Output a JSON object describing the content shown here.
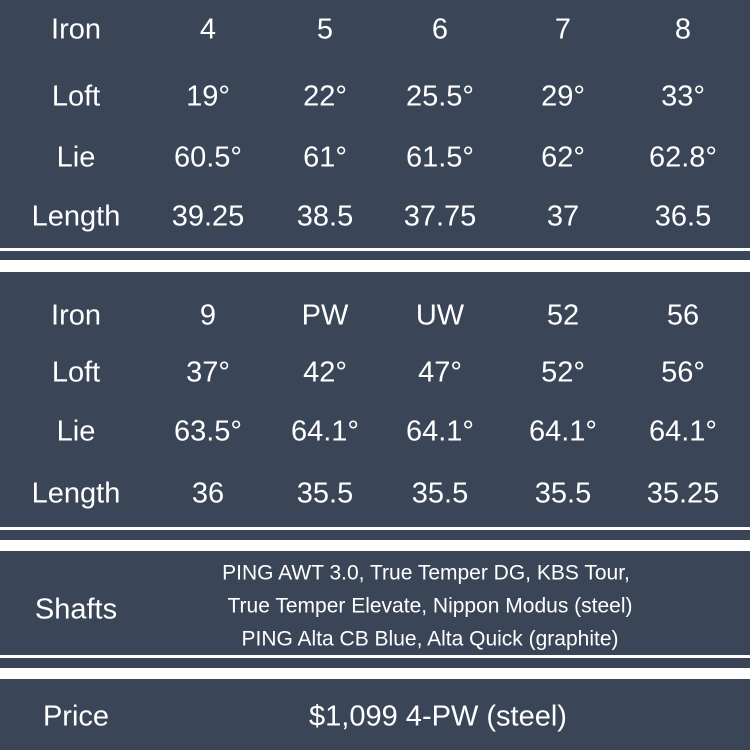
{
  "colors": {
    "background": "#3a4657",
    "divider": "#ffffff",
    "text": "#ffffff"
  },
  "table1": {
    "rows": [
      {
        "label": "Iron",
        "values": [
          "4",
          "5",
          "6",
          "7",
          "8"
        ]
      },
      {
        "label": "Loft",
        "values": [
          "19°",
          "22°",
          "25.5°",
          "29°",
          "33°"
        ]
      },
      {
        "label": "Lie",
        "values": [
          "60.5°",
          "61°",
          "61.5°",
          "62°",
          "62.8°"
        ]
      },
      {
        "label": "Length",
        "values": [
          "39.25",
          "38.5",
          "37.75",
          "37",
          "36.5"
        ]
      }
    ]
  },
  "table2": {
    "rows": [
      {
        "label": "Iron",
        "values": [
          "9",
          "PW",
          "UW",
          "52",
          "56"
        ]
      },
      {
        "label": "Loft",
        "values": [
          "37°",
          "42°",
          "47°",
          "52°",
          "56°"
        ]
      },
      {
        "label": "Lie",
        "values": [
          "63.5°",
          "64.1°",
          "64.1°",
          "64.1°",
          "64.1°"
        ]
      },
      {
        "label": "Length",
        "values": [
          "36",
          "35.5",
          "35.5",
          "35.5",
          "35.25"
        ]
      }
    ]
  },
  "shafts": {
    "label": "Shafts",
    "lines": [
      "PING AWT 3.0, True Temper DG, KBS Tour,",
      "True Temper Elevate, Nippon Modus (steel)",
      "PING Alta CB Blue, Alta Quick (graphite)"
    ]
  },
  "price": {
    "label": "Price",
    "value": "$1,099 4-PW (steel)"
  }
}
